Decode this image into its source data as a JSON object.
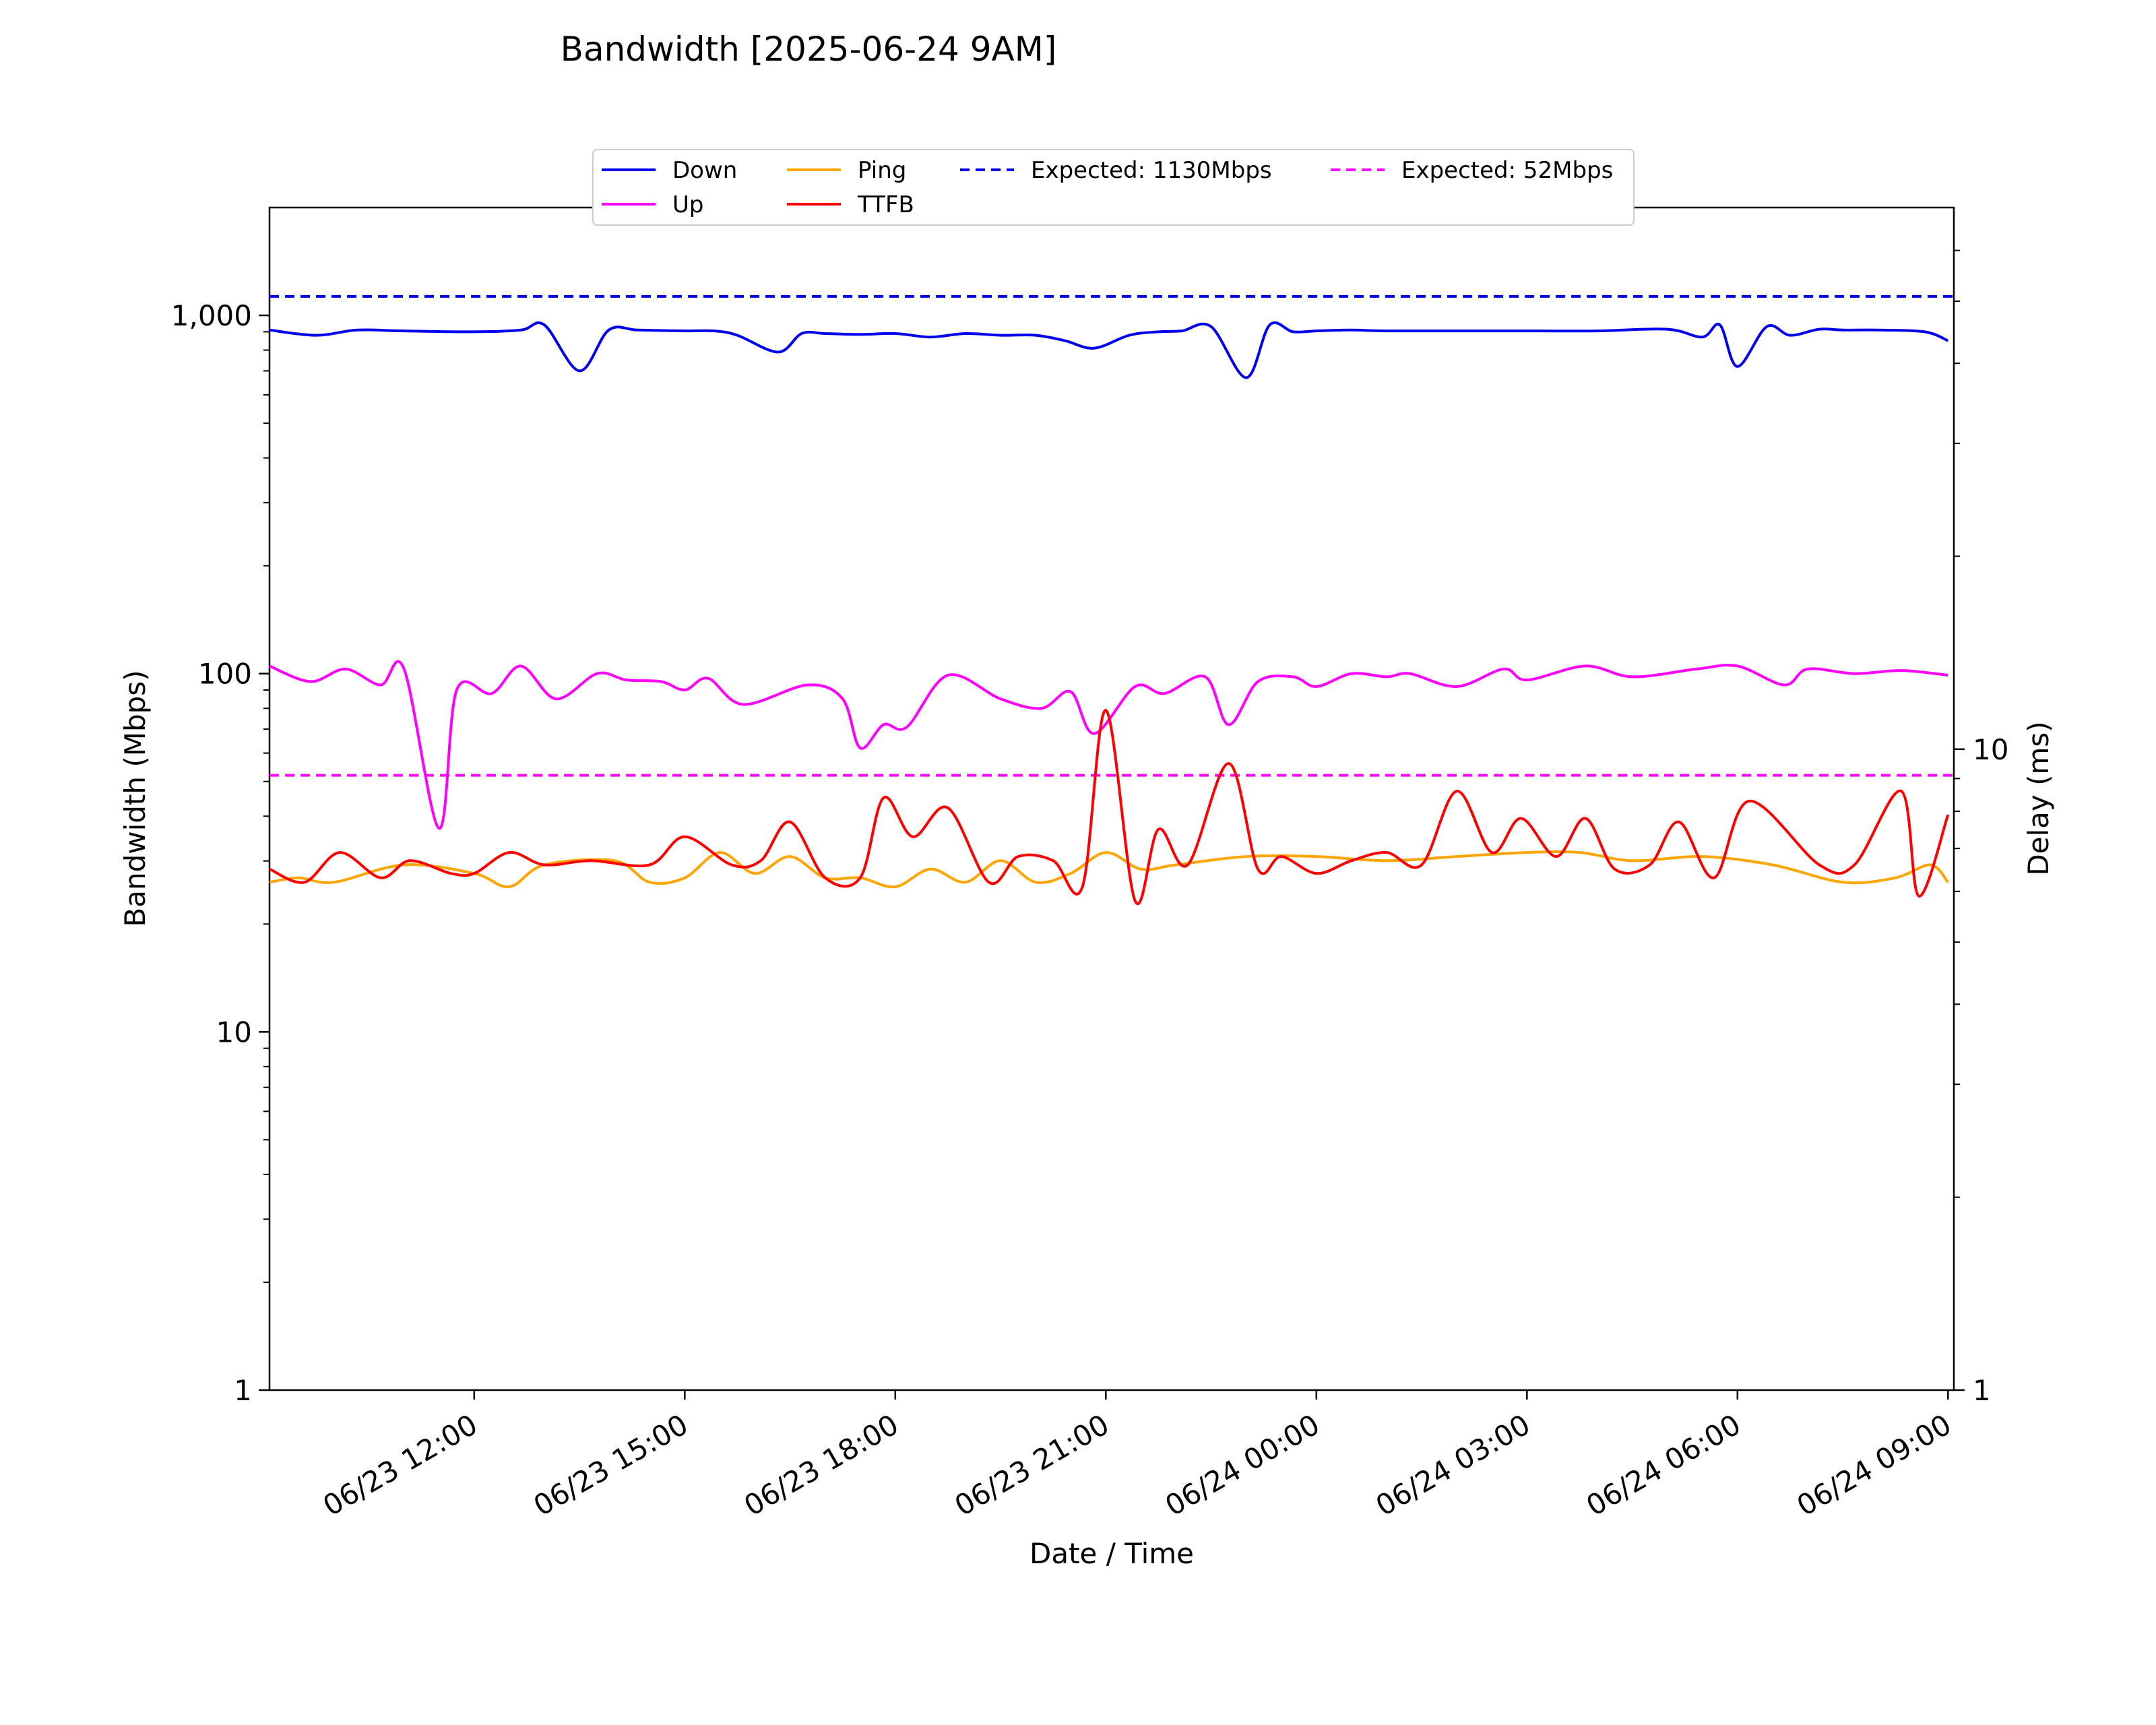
{
  "chart_data": {
    "type": "line",
    "title": "Bandwidth [2025-06-24 9AM]",
    "xlabel": "Date / Time",
    "ylabel": "Bandwidth (Mbps)",
    "y2label": "Delay (ms)",
    "x_ticks": [
      "06/23 12:00",
      "06/23 15:00",
      "06/23 18:00",
      "06/23 21:00",
      "06/24 00:00",
      "06/24 03:00",
      "06/24 06:00",
      "06/24 09:00"
    ],
    "x_range": [
      "06/23 09:05",
      "06/24 09:05"
    ],
    "ylim": [
      1,
      2000
    ],
    "yscale": "log",
    "y_ticks": [
      "1",
      "10",
      "100",
      "1,000"
    ],
    "y2lim": [
      1,
      70
    ],
    "y2scale": "log",
    "y2_ticks": [
      "1",
      "10"
    ],
    "grid": false,
    "legend_position": "top-center",
    "colors": {
      "down": "#0000ee",
      "up": "#ff00ff",
      "ping": "#ffa500",
      "ttfb": "#ff0000"
    },
    "series": [
      {
        "name": "Down",
        "axis": "left",
        "color": "#0000ee",
        "x": [
          "06/23 09:05",
          "06/23 09:45",
          "06/23 10:20",
          "06/23 11:00",
          "06/23 12:00",
          "06/23 12:40",
          "06/23 13:00",
          "06/23 13:30",
          "06/23 13:55",
          "06/23 14:20",
          "06/23 15:00",
          "06/23 15:25",
          "06/23 15:45",
          "06/23 16:20",
          "06/23 16:40",
          "06/23 17:00",
          "06/23 17:30",
          "06/23 18:00",
          "06/23 18:30",
          "06/23 19:00",
          "06/23 19:30",
          "06/23 20:00",
          "06/23 20:25",
          "06/23 20:50",
          "06/23 21:20",
          "06/23 21:45",
          "06/23 22:05",
          "06/23 22:30",
          "06/23 23:00",
          "06/23 23:20",
          "06/23 23:40",
          "06/24 00:00",
          "06/24 00:30",
          "06/24 01:00",
          "06/24 02:00",
          "06/24 03:00",
          "06/24 04:00",
          "06/24 05:00",
          "06/24 05:30",
          "06/24 05:45",
          "06/24 06:00",
          "06/24 06:25",
          "06/24 06:45",
          "06/24 07:10",
          "06/24 07:30",
          "06/24 08:00",
          "06/24 08:40",
          "06/24 09:00"
        ],
        "y": [
          910,
          880,
          910,
          905,
          900,
          910,
          940,
          700,
          910,
          910,
          905,
          905,
          880,
          790,
          890,
          890,
          885,
          890,
          870,
          890,
          880,
          880,
          850,
          810,
          880,
          900,
          905,
          930,
          670,
          940,
          900,
          905,
          910,
          905,
          905,
          905,
          905,
          915,
          870,
          940,
          720,
          930,
          880,
          915,
          910,
          910,
          900,
          850
        ]
      },
      {
        "name": "Up",
        "axis": "left",
        "color": "#ff00ff",
        "x": [
          "06/23 09:05",
          "06/23 09:40",
          "06/23 10:10",
          "06/23 10:40",
          "06/23 11:00",
          "06/23 11:30",
          "06/23 11:45",
          "06/23 12:15",
          "06/23 12:40",
          "06/23 13:10",
          "06/23 13:45",
          "06/23 14:10",
          "06/23 14:40",
          "06/23 15:00",
          "06/23 15:20",
          "06/23 15:50",
          "06/23 16:45",
          "06/23 17:15",
          "06/23 17:30",
          "06/23 17:50",
          "06/23 18:10",
          "06/23 18:45",
          "06/23 19:30",
          "06/23 20:05",
          "06/23 20:30",
          "06/23 20:50",
          "06/23 21:25",
          "06/23 21:50",
          "06/23 22:25",
          "06/23 22:45",
          "06/23 23:10",
          "06/23 23:40",
          "06/24 00:00",
          "06/24 00:30",
          "06/24 01:00",
          "06/24 01:20",
          "06/24 02:00",
          "06/24 02:40",
          "06/24 03:00",
          "06/24 03:50",
          "06/24 04:30",
          "06/24 05:25",
          "06/24 06:00",
          "06/24 06:40",
          "06/24 07:00",
          "06/24 07:40",
          "06/24 08:20",
          "06/24 09:00"
        ],
        "y": [
          105,
          95,
          103,
          93,
          103,
          37,
          90,
          88,
          105,
          85,
          100,
          96,
          95,
          90,
          97,
          82,
          93,
          85,
          62,
          72,
          71,
          99,
          85,
          80,
          89,
          68,
          92,
          88,
          98,
          72,
          95,
          98,
          92,
          100,
          98,
          100,
          92,
          103,
          96,
          105,
          98,
          103,
          105,
          93,
          103,
          100,
          102,
          99
        ]
      },
      {
        "name": "Ping",
        "axis": "right",
        "color": "#ffa500",
        "x": [
          "06/23 09:05",
          "06/23 09:30",
          "06/23 10:00",
          "06/23 11:00",
          "06/23 12:00",
          "06/23 12:30",
          "06/23 13:00",
          "06/23 14:00",
          "06/23 14:30",
          "06/23 15:00",
          "06/23 15:30",
          "06/23 16:00",
          "06/23 16:30",
          "06/23 17:00",
          "06/23 17:30",
          "06/23 18:00",
          "06/23 18:30",
          "06/23 19:00",
          "06/23 19:30",
          "06/23 20:00",
          "06/23 20:30",
          "06/23 21:00",
          "06/23 21:30",
          "06/23 22:00",
          "06/23 23:00",
          "06/24 00:00",
          "06/24 01:00",
          "06/24 02:00",
          "06/24 03:00",
          "06/24 03:45",
          "06/24 04:30",
          "06/24 05:30",
          "06/24 06:30",
          "06/24 07:30",
          "06/24 08:15",
          "06/24 08:45",
          "06/24 09:00"
        ],
        "y": [
          6.2,
          6.3,
          6.2,
          6.6,
          6.4,
          6.1,
          6.6,
          6.7,
          6.2,
          6.3,
          6.9,
          6.4,
          6.8,
          6.3,
          6.3,
          6.1,
          6.5,
          6.2,
          6.7,
          6.2,
          6.4,
          6.9,
          6.5,
          6.6,
          6.8,
          6.8,
          6.7,
          6.8,
          6.9,
          6.9,
          6.7,
          6.8,
          6.6,
          6.2,
          6.3,
          6.6,
          6.2
        ]
      },
      {
        "name": "TTFB",
        "axis": "right",
        "color": "#ff0000",
        "x": [
          "06/23 09:05",
          "06/23 09:35",
          "06/23 10:05",
          "06/23 10:40",
          "06/23 11:05",
          "06/23 11:40",
          "06/23 12:00",
          "06/23 12:30",
          "06/23 13:00",
          "06/23 13:40",
          "06/23 14:30",
          "06/23 15:00",
          "06/23 15:40",
          "06/23 16:05",
          "06/23 16:30",
          "06/23 17:00",
          "06/23 17:30",
          "06/23 17:50",
          "06/23 18:15",
          "06/23 18:45",
          "06/23 19:20",
          "06/23 19:45",
          "06/23 20:15",
          "06/23 20:40",
          "06/23 21:00",
          "06/23 21:25",
          "06/23 21:45",
          "06/23 22:10",
          "06/23 22:45",
          "06/23 23:10",
          "06/23 23:30",
          "06/24 00:00",
          "06/24 00:30",
          "06/24 01:00",
          "06/24 01:30",
          "06/24 02:00",
          "06/24 02:30",
          "06/24 02:55",
          "06/24 03:25",
          "06/24 03:50",
          "06/24 04:15",
          "06/24 04:45",
          "06/24 05:10",
          "06/24 05:40",
          "06/24 06:10",
          "06/24 07:10",
          "06/24 07:40",
          "06/24 08:20",
          "06/24 08:35",
          "06/24 09:00"
        ],
        "y": [
          6.5,
          6.2,
          6.9,
          6.3,
          6.7,
          6.4,
          6.4,
          6.9,
          6.6,
          6.7,
          6.6,
          7.3,
          6.6,
          6.7,
          7.7,
          6.3,
          6.3,
          8.4,
          7.3,
          8.1,
          6.2,
          6.8,
          6.7,
          6.1,
          11.5,
          5.8,
          7.5,
          6.6,
          9.5,
          6.5,
          6.8,
          6.4,
          6.7,
          6.9,
          6.6,
          8.6,
          6.9,
          7.8,
          6.8,
          7.8,
          6.5,
          6.6,
          7.7,
          6.3,
          8.3,
          6.6,
          6.6,
          8.6,
          5.9,
          7.9
        ]
      },
      {
        "name": "Expected: 1130Mbps",
        "axis": "left",
        "color": "#0000ee",
        "dashed": true,
        "constant": 1130
      },
      {
        "name": "Expected: 52Mbps",
        "axis": "left",
        "color": "#ff00ff",
        "dashed": true,
        "constant": 52
      }
    ]
  }
}
